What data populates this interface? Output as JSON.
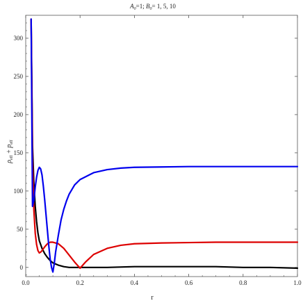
{
  "chart_data": {
    "type": "line",
    "title": "A0=1; B0= 1, 5, 10",
    "title_parts": {
      "a_symbol": "A",
      "a_sub": "0",
      "a_rest": "=1; ",
      "b_symbol": "B",
      "b_sub": "0",
      "b_rest": "= 1, 5, 10"
    },
    "xlabel": "r",
    "ylabel": "ρeff+peff",
    "ylabel_parts": {
      "rho": "ρ",
      "rho_sub": "eff",
      "plus": " + ",
      "p": "p",
      "p_sub": "eff"
    },
    "xlim": [
      0.0,
      1.0
    ],
    "ylim": [
      -12,
      330
    ],
    "xticks": [
      0.0,
      0.2,
      0.4,
      0.6,
      0.8,
      1.0
    ],
    "xtick_labels": [
      "0.0",
      "0.2",
      "0.4",
      "0.6",
      "0.8",
      "1.0"
    ],
    "yticks": [
      0,
      50,
      100,
      150,
      200,
      250,
      300
    ],
    "ytick_labels": [
      "0",
      "50",
      "100",
      "150",
      "200",
      "250",
      "300"
    ],
    "grid": false,
    "legend": "none",
    "series": [
      {
        "color": "#000000",
        "x": [
          0.02,
          0.025,
          0.03,
          0.035,
          0.04,
          0.045,
          0.05,
          0.06,
          0.07,
          0.08,
          0.09,
          0.1,
          0.12,
          0.14,
          0.16,
          0.2,
          0.3,
          0.4,
          0.5,
          0.6,
          0.7,
          0.8,
          0.9,
          1.0
        ],
        "y": [
          325,
          160,
          110,
          80,
          60,
          45,
          35,
          25,
          18,
          13,
          9,
          6,
          3,
          1,
          0,
          0,
          0,
          1,
          1,
          1,
          1,
          0,
          0,
          -1
        ]
      },
      {
        "color": "#dd0000",
        "x": [
          0.02,
          0.025,
          0.03,
          0.035,
          0.04,
          0.045,
          0.05,
          0.055,
          0.06,
          0.07,
          0.08,
          0.09,
          0.1,
          0.12,
          0.14,
          0.16,
          0.18,
          0.2,
          0.22,
          0.25,
          0.3,
          0.35,
          0.4,
          0.5,
          0.6,
          0.7,
          0.8,
          0.9,
          1.0
        ],
        "y": [
          325,
          140,
          75,
          45,
          30,
          22,
          19,
          20,
          22,
          27,
          31,
          33,
          33,
          31,
          25,
          16,
          7,
          -1,
          7,
          17,
          25,
          29,
          31,
          32,
          32.5,
          33,
          33,
          33,
          33
        ]
      },
      {
        "color": "#0000ee",
        "x": [
          0.02,
          0.025,
          0.03,
          0.035,
          0.04,
          0.045,
          0.05,
          0.055,
          0.06,
          0.065,
          0.07,
          0.075,
          0.08,
          0.085,
          0.09,
          0.095,
          0.1,
          0.105,
          0.11,
          0.12,
          0.13,
          0.14,
          0.15,
          0.16,
          0.18,
          0.2,
          0.25,
          0.3,
          0.35,
          0.4,
          0.5,
          0.6,
          0.7,
          0.8,
          0.9,
          1.0
        ],
        "y": [
          325,
          80,
          88,
          105,
          118,
          127,
          131,
          129,
          121,
          106,
          88,
          68,
          48,
          28,
          11,
          0,
          -6,
          5,
          20,
          42,
          62,
          76,
          87,
          96,
          108,
          115,
          124,
          128,
          130,
          131,
          131.5,
          132,
          132,
          132,
          132,
          132
        ]
      }
    ]
  }
}
